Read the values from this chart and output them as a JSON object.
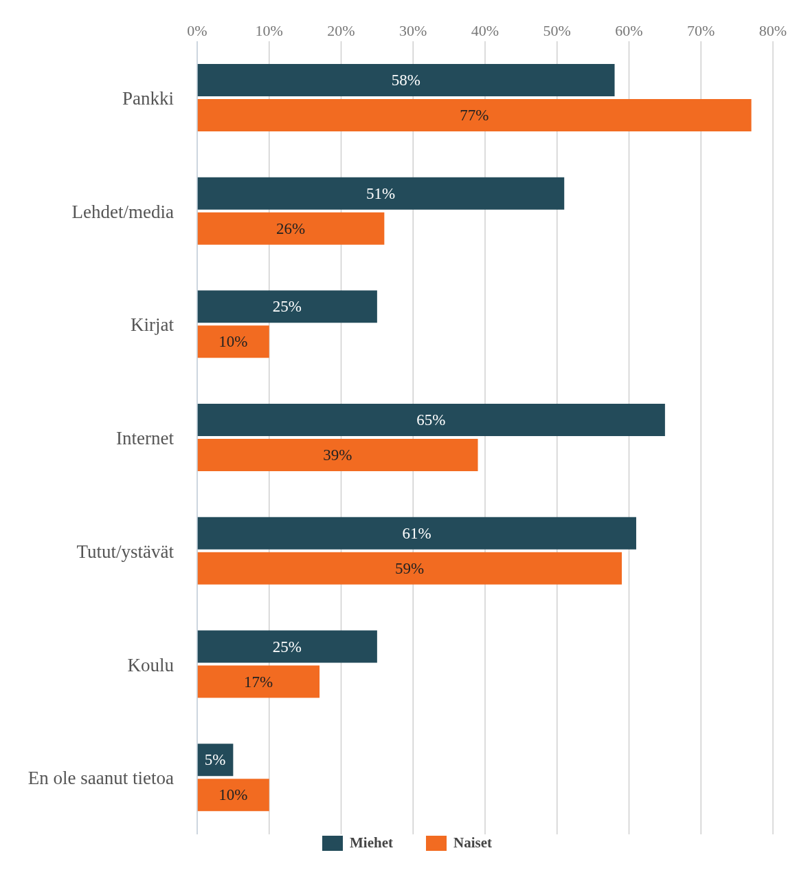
{
  "chart_data": {
    "type": "bar",
    "orientation": "horizontal",
    "categories": [
      "Pankki",
      "Lehdet/media",
      "Kirjat",
      "Internet",
      "Tutut/ystävät",
      "Koulu",
      "En ole saanut tietoa"
    ],
    "series": [
      {
        "name": "Miehet",
        "color": "#234b5a",
        "values": [
          58,
          51,
          25,
          65,
          61,
          25,
          5
        ],
        "value_labels": [
          "58%",
          "51%",
          "25%",
          "65%",
          "61%",
          "25%",
          "5%"
        ]
      },
      {
        "name": "Naiset",
        "color": "#f26b21",
        "values": [
          77,
          26,
          10,
          39,
          59,
          17,
          10
        ],
        "value_labels": [
          "77%",
          "26%",
          "10%",
          "39%",
          "59%",
          "17%",
          "10%"
        ]
      }
    ],
    "xlim": [
      0,
      80
    ],
    "xticks": [
      {
        "value": 0,
        "label": "0%"
      },
      {
        "value": 10,
        "label": "10%"
      },
      {
        "value": 20,
        "label": "20%"
      },
      {
        "value": 30,
        "label": "30%"
      },
      {
        "value": 40,
        "label": "40%"
      },
      {
        "value": 50,
        "label": "50%"
      },
      {
        "value": 60,
        "label": "60%"
      },
      {
        "value": 70,
        "label": "70%"
      },
      {
        "value": 80,
        "label": "80%"
      }
    ],
    "grid": "x",
    "legend": "bottom"
  }
}
